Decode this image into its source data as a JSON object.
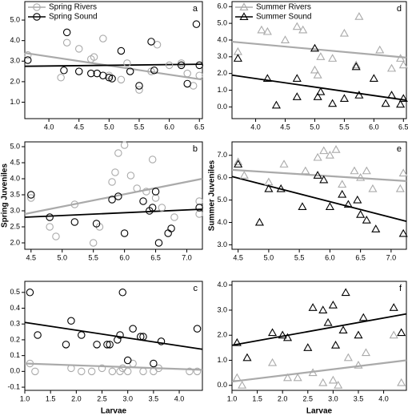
{
  "chart_data": [
    {
      "type": "scatter",
      "label": "a",
      "legend": "upper left",
      "xlim": [
        3.6,
        6.55
      ],
      "xticks": [
        {
          "value": 4,
          "label": "4.0"
        },
        4.5,
        {
          "value": 5,
          "label": "5.0"
        },
        5.5,
        {
          "value": 6,
          "label": "6.0"
        },
        6.5
      ],
      "ylim": [
        0.2,
        5.9
      ],
      "yticks": [
        {
          "value": 1,
          "label": "1.0"
        },
        {
          "value": 2,
          "label": "2.0"
        },
        {
          "value": 3,
          "label": "3.0"
        },
        {
          "value": 4,
          "label": "4.0"
        },
        {
          "value": 5,
          "label": "5.0"
        }
      ],
      "series": [
        {
          "name": "Spring Rivers",
          "color": "#aaaaaa",
          "marker": "circle",
          "x": [
            3.65,
            4.2,
            4.3,
            4.5,
            4.7,
            4.75,
            4.9,
            5.0,
            5.2,
            5.3,
            5.5,
            5.7,
            5.8,
            6.0,
            6.2,
            6.3,
            6.5,
            6.4
          ],
          "y": [
            3.3,
            2.2,
            3.9,
            3.6,
            3.1,
            3.2,
            4.1,
            2.3,
            2.1,
            2.9,
            1.6,
            2.5,
            3.8,
            2.8,
            2.9,
            2.4,
            2.3,
            1.8
          ]
        },
        {
          "name": "Spring Sound",
          "color": "#000000",
          "marker": "circle",
          "x": [
            3.65,
            4.25,
            4.3,
            4.5,
            4.7,
            4.8,
            4.9,
            5.0,
            5.05,
            5.2,
            5.35,
            5.5,
            5.7,
            5.75,
            6.2,
            6.3,
            6.45,
            6.5
          ],
          "y": [
            3.05,
            2.55,
            4.4,
            2.5,
            2.4,
            2.4,
            2.3,
            2.2,
            2.15,
            3.5,
            2.5,
            1.8,
            3.95,
            2.55,
            2.8,
            1.9,
            4.8,
            2.8
          ]
        }
      ],
      "fits": [
        {
          "color": "#aaaaaa",
          "x": [
            3.6,
            6.55
          ],
          "y": [
            3.4,
            2.1
          ]
        },
        {
          "color": "#000000",
          "x": [
            3.6,
            6.55
          ],
          "y": [
            2.75,
            2.85
          ]
        }
      ]
    },
    {
      "type": "scatter",
      "label": "d",
      "legend": "upper left",
      "xlim": [
        3.6,
        6.55
      ],
      "xticks": [
        {
          "value": 4,
          "label": "4.0"
        },
        4.5,
        {
          "value": 5,
          "label": "5.0"
        },
        5.5,
        {
          "value": 6,
          "label": "6.0"
        },
        6.5
      ],
      "ylim": [
        -0.7,
        6.3
      ],
      "yticks": [
        {
          "value": 0,
          "label": "0.0"
        },
        {
          "value": 1,
          "label": "1.0"
        },
        {
          "value": 2,
          "label": "2.0"
        },
        {
          "value": 3,
          "label": "3.0"
        },
        {
          "value": 4,
          "label": "4.0"
        },
        {
          "value": 5,
          "label": "5.0"
        },
        {
          "value": 6,
          "label": "6.0"
        }
      ],
      "series": [
        {
          "name": "Summer Rivers",
          "color": "#aaaaaa",
          "marker": "triangle",
          "x": [
            3.7,
            4.1,
            4.2,
            4.5,
            4.7,
            4.8,
            5.0,
            5.05,
            5.1,
            5.3,
            5.5,
            5.7,
            5.75,
            6.1,
            6.3,
            6.5,
            6.45
          ],
          "y": [
            3.3,
            4.6,
            4.5,
            4.0,
            4.8,
            4.6,
            2.2,
            1.9,
            3.0,
            2.9,
            4.4,
            2.5,
            5.4,
            3.4,
            2.3,
            2.5,
            2.9
          ]
        },
        {
          "name": "Summer Sound",
          "color": "#000000",
          "marker": "triangle",
          "x": [
            3.7,
            4.2,
            4.35,
            4.7,
            4.7,
            5.0,
            5.05,
            5.1,
            5.3,
            5.5,
            5.7,
            5.75,
            6.0,
            6.2,
            6.3,
            6.45,
            6.5
          ],
          "y": [
            2.9,
            1.7,
            0.1,
            1.7,
            0.6,
            3.5,
            0.6,
            0.9,
            0.2,
            0.5,
            2.4,
            0.7,
            1.7,
            0.2,
            0.7,
            0.15,
            0.5
          ]
        }
      ],
      "fits": [
        {
          "color": "#aaaaaa",
          "x": [
            3.6,
            6.55
          ],
          "y": [
            3.9,
            2.95
          ]
        },
        {
          "color": "#000000",
          "x": [
            3.6,
            6.55
          ],
          "y": [
            1.9,
            0.4
          ]
        }
      ]
    },
    {
      "type": "scatter",
      "label": "b",
      "ylabel": "Spring Juveniles",
      "xlim": [
        4.4,
        7.25
      ],
      "xticks": [
        4.5,
        {
          "value": 5,
          "label": "5.0"
        },
        5.5,
        {
          "value": 6,
          "label": "6.0"
        },
        6.5,
        {
          "value": 7,
          "label": "7.0"
        }
      ],
      "ylim": [
        1.8,
        5.15
      ],
      "yticks": [
        {
          "value": 2,
          "label": "2.0"
        },
        2.5,
        {
          "value": 3,
          "label": "3.0"
        },
        3.5,
        {
          "value": 4,
          "label": "4.0"
        },
        4.5,
        {
          "value": 5,
          "label": "5.0"
        }
      ],
      "series": [
        {
          "color": "#aaaaaa",
          "marker": "circle",
          "x": [
            4.5,
            4.8,
            4.9,
            5.2,
            5.5,
            5.6,
            5.8,
            5.85,
            5.9,
            6.0,
            6.1,
            6.2,
            6.35,
            6.45,
            6.5,
            6.6,
            6.8,
            7.2,
            7.2
          ],
          "y": [
            3.4,
            2.5,
            2.2,
            3.2,
            2.0,
            2.5,
            3.9,
            4.2,
            4.8,
            5.05,
            4.1,
            3.7,
            3.6,
            4.6,
            3.4,
            3.1,
            2.8,
            3.3,
            2.9
          ]
        },
        {
          "color": "#000000",
          "marker": "circle",
          "x": [
            4.5,
            4.8,
            5.2,
            5.55,
            5.8,
            5.9,
            6.0,
            6.3,
            6.4,
            6.45,
            6.5,
            6.55,
            6.7,
            6.75,
            7.2
          ],
          "y": [
            3.5,
            2.8,
            2.65,
            2.6,
            3.35,
            3.45,
            2.3,
            3.3,
            3.0,
            3.1,
            3.6,
            2.0,
            2.3,
            2.45,
            3.1
          ]
        }
      ],
      "fits": [
        {
          "color": "#aaaaaa",
          "x": [
            4.4,
            7.25
          ],
          "y": [
            2.9,
            4.0
          ]
        },
        {
          "color": "#000000",
          "x": [
            4.4,
            7.25
          ],
          "y": [
            2.8,
            3.05
          ]
        }
      ]
    },
    {
      "type": "scatter",
      "label": "e",
      "ylabel": "Summer Juveniles",
      "xlim": [
        4.4,
        7.25
      ],
      "xticks": [
        4.5,
        {
          "value": 5,
          "label": "5.0"
        },
        5.5,
        {
          "value": 6,
          "label": "6.0"
        },
        6.5,
        {
          "value": 7,
          "label": "7.0"
        }
      ],
      "ylim": [
        2.8,
        7.6
      ],
      "yticks": [
        {
          "value": 3,
          "label": "3.0"
        },
        {
          "value": 4,
          "label": "4.0"
        },
        {
          "value": 5,
          "label": "5.0"
        },
        {
          "value": 6,
          "label": "6.0"
        },
        {
          "value": 7,
          "label": "7.0"
        }
      ],
      "series": [
        {
          "color": "#aaaaaa",
          "marker": "triangle",
          "x": [
            4.5,
            4.6,
            5.0,
            5.25,
            5.6,
            5.8,
            5.9,
            6.0,
            6.1,
            6.2,
            6.4,
            6.5,
            6.6,
            6.7,
            7.2,
            7.15
          ],
          "y": [
            6.7,
            6.1,
            5.8,
            6.6,
            6.3,
            6.9,
            7.2,
            7.0,
            7.25,
            5.7,
            6.3,
            6.0,
            6.3,
            5.5,
            6.2,
            5.5
          ]
        },
        {
          "color": "#000000",
          "marker": "triangle",
          "x": [
            4.5,
            4.85,
            5.0,
            5.2,
            5.55,
            5.8,
            5.9,
            6.0,
            6.2,
            6.3,
            6.45,
            6.5,
            6.6,
            6.75,
            7.2
          ],
          "y": [
            6.6,
            4.0,
            5.5,
            5.5,
            4.7,
            6.1,
            5.9,
            4.7,
            5.25,
            4.8,
            5.0,
            4.35,
            4.1,
            3.7,
            3.5
          ]
        }
      ],
      "fits": [
        {
          "color": "#aaaaaa",
          "x": [
            4.4,
            7.25
          ],
          "y": [
            6.35,
            5.85
          ]
        },
        {
          "color": "#000000",
          "x": [
            4.4,
            7.25
          ],
          "y": [
            6.05,
            4.05
          ]
        }
      ]
    },
    {
      "type": "scatter",
      "label": "c",
      "xlabel": "Larvae",
      "xlim": [
        1.0,
        4.45
      ],
      "xticks": [
        {
          "value": 1,
          "label": "1.0"
        },
        1.5,
        {
          "value": 2,
          "label": "2.0"
        },
        2.5,
        {
          "value": 3,
          "label": "3.0"
        },
        3.5,
        {
          "value": 4,
          "label": "4.0"
        }
      ],
      "ylim": [
        -0.12,
        0.57
      ],
      "yticks": [
        -0.1,
        {
          "value": 0,
          "label": "0.0"
        },
        0.1,
        0.2,
        0.3,
        0.4,
        0.5
      ],
      "series": [
        {
          "color": "#aaaaaa",
          "marker": "circle",
          "x": [
            1.1,
            1.2,
            1.9,
            2.1,
            2.3,
            2.5,
            2.7,
            2.85,
            2.9,
            3.0,
            3.1,
            3.3,
            3.5,
            3.6,
            4.2,
            4.35
          ],
          "y": [
            0.05,
            0.0,
            0.02,
            0.0,
            0.0,
            0.02,
            0.0,
            0.0,
            0.02,
            0.0,
            0.05,
            0.0,
            0.0,
            0.02,
            0.0,
            0.0
          ]
        },
        {
          "color": "#000000",
          "marker": "circle",
          "x": [
            1.1,
            1.25,
            1.8,
            1.9,
            2.1,
            2.4,
            2.6,
            2.65,
            2.8,
            2.85,
            2.9,
            3.0,
            3.1,
            3.25,
            3.3,
            3.5,
            3.65,
            4.35
          ],
          "y": [
            0.5,
            0.23,
            0.17,
            0.32,
            0.23,
            0.17,
            0.17,
            0.17,
            0.2,
            0.23,
            0.5,
            0.07,
            0.27,
            0.22,
            0.22,
            0.05,
            0.19,
            0.27
          ]
        }
      ],
      "fits": [
        {
          "color": "#aaaaaa",
          "x": [
            1.0,
            4.45
          ],
          "y": [
            0.05,
            0.01
          ]
        },
        {
          "color": "#000000",
          "x": [
            1.0,
            4.45
          ],
          "y": [
            0.31,
            0.14
          ]
        }
      ]
    },
    {
      "type": "scatter",
      "label": "f",
      "xlabel": "Larvae",
      "xlim": [
        1.0,
        4.45
      ],
      "xticks": [
        {
          "value": 1,
          "label": "1.0"
        },
        1.5,
        {
          "value": 2,
          "label": "2.0"
        },
        2.5,
        {
          "value": 3,
          "label": "3.0"
        },
        3.5,
        {
          "value": 4,
          "label": "4.0"
        }
      ],
      "ylim": [
        -0.2,
        4.15
      ],
      "yticks": [
        {
          "value": 0,
          "label": "0.0"
        },
        {
          "value": 1,
          "label": "1.0"
        },
        {
          "value": 2,
          "label": "2.0"
        },
        {
          "value": 3,
          "label": "3.0"
        },
        {
          "value": 4,
          "label": "4.0"
        }
      ],
      "series": [
        {
          "color": "#aaaaaa",
          "marker": "triangle",
          "x": [
            1.1,
            1.2,
            1.8,
            2.1,
            2.3,
            2.6,
            2.8,
            3.0,
            3.1,
            3.3,
            3.5,
            3.65,
            4.2,
            4.35
          ],
          "y": [
            0.3,
            0.0,
            0.9,
            0.3,
            0.3,
            0.5,
            0.1,
            0.2,
            0.0,
            1.1,
            0.8,
            1.3,
            2.0,
            0.1
          ]
        },
        {
          "color": "#000000",
          "marker": "triangle",
          "x": [
            1.1,
            1.3,
            1.8,
            2.0,
            2.1,
            2.5,
            2.6,
            2.8,
            2.9,
            3.0,
            3.05,
            3.2,
            3.25,
            3.5,
            3.6,
            4.2,
            4.35
          ],
          "y": [
            1.7,
            1.1,
            2.1,
            2.0,
            1.9,
            1.5,
            3.1,
            3.0,
            2.5,
            3.2,
            1.6,
            2.2,
            3.7,
            2.0,
            2.7,
            3.1,
            2.1
          ]
        }
      ],
      "fits": [
        {
          "color": "#aaaaaa",
          "x": [
            1.0,
            4.45
          ],
          "y": [
            0.15,
            1.0
          ]
        },
        {
          "color": "#000000",
          "x": [
            1.0,
            4.45
          ],
          "y": [
            1.6,
            2.85
          ]
        }
      ]
    }
  ]
}
